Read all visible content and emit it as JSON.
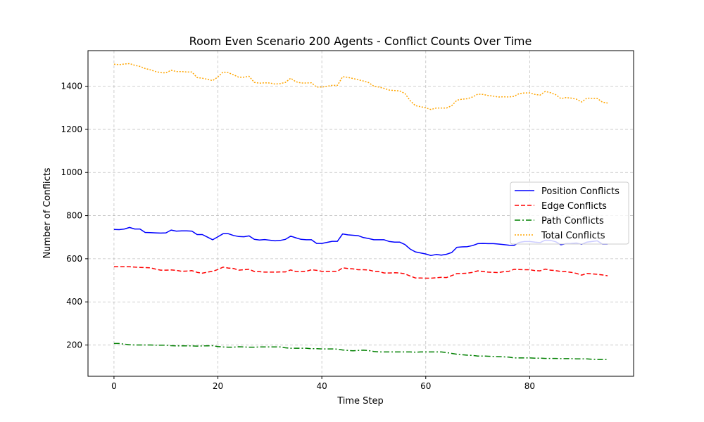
{
  "chart_data": {
    "type": "line",
    "title": "Room Even Scenario 200 Agents - Conflict Counts Over Time",
    "xlabel": "Time Step",
    "ylabel": "Number of Conflicts",
    "xlim": [
      -5,
      100
    ],
    "ylim": [
      55,
      1565
    ],
    "xticks": [
      0,
      20,
      40,
      60,
      80
    ],
    "yticks": [
      200,
      400,
      600,
      800,
      1000,
      1200,
      1400
    ],
    "grid": true,
    "legend_position": "center-right",
    "x": [
      0,
      1,
      2,
      3,
      4,
      5,
      6,
      7,
      8,
      9,
      10,
      11,
      12,
      13,
      14,
      15,
      16,
      17,
      18,
      19,
      20,
      21,
      22,
      23,
      24,
      25,
      26,
      27,
      28,
      29,
      30,
      31,
      32,
      33,
      34,
      35,
      36,
      37,
      38,
      39,
      40,
      41,
      42,
      43,
      44,
      45,
      46,
      47,
      48,
      49,
      50,
      51,
      52,
      53,
      54,
      55,
      56,
      57,
      58,
      59,
      60,
      61,
      62,
      63,
      64,
      65,
      66,
      67,
      68,
      69,
      70,
      71,
      72,
      73,
      74,
      75,
      76,
      77,
      78,
      79,
      80,
      81,
      82,
      83,
      84,
      85,
      86,
      87,
      88,
      89,
      90,
      91,
      92,
      93,
      94,
      95
    ],
    "series": [
      {
        "name": "Position Conflicts",
        "color": "#0000ff",
        "dash": "solid",
        "values": [
          736,
          735,
          738,
          745,
          738,
          738,
          722,
          721,
          720,
          719,
          720,
          733,
          728,
          729,
          729,
          728,
          712,
          712,
          700,
          688,
          702,
          716,
          716,
          708,
          703,
          702,
          706,
          690,
          687,
          689,
          686,
          683,
          685,
          690,
          705,
          697,
          690,
          688,
          688,
          671,
          671,
          676,
          681,
          681,
          715,
          711,
          709,
          707,
          698,
          694,
          688,
          688,
          688,
          680,
          677,
          677,
          666,
          645,
          632,
          627,
          622,
          615,
          620,
          617,
          621,
          629,
          653,
          655,
          656,
          661,
          670,
          671,
          670,
          670,
          668,
          666,
          663,
          662,
          676,
          680,
          680,
          677,
          675,
          686,
          685,
          679,
          665,
          670,
          671,
          673,
          667,
          677,
          680,
          683,
          668,
          668
        ]
      },
      {
        "name": "Edge Conflicts",
        "color": "#ff0000",
        "dash": "dashed",
        "values": [
          563,
          563,
          563,
          563,
          561,
          560,
          559,
          558,
          552,
          547,
          547,
          548,
          546,
          542,
          543,
          545,
          537,
          533,
          538,
          542,
          550,
          561,
          557,
          555,
          547,
          549,
          551,
          541,
          540,
          538,
          538,
          538,
          539,
          539,
          548,
          541,
          540,
          542,
          549,
          546,
          542,
          542,
          542,
          542,
          558,
          555,
          553,
          549,
          549,
          548,
          542,
          540,
          534,
          534,
          535,
          534,
          530,
          520,
          511,
          511,
          510,
          510,
          512,
          514,
          513,
          522,
          531,
          532,
          533,
          537,
          544,
          541,
          538,
          537,
          536,
          540,
          542,
          551,
          550,
          549,
          549,
          545,
          544,
          552,
          547,
          545,
          541,
          540,
          537,
          532,
          524,
          532,
          530,
          528,
          525,
          521
        ]
      },
      {
        "name": "Path Conflicts",
        "color": "#008000",
        "dash": "dashdot",
        "values": [
          207,
          207,
          204,
          201,
          200,
          200,
          200,
          200,
          199,
          199,
          199,
          197,
          196,
          196,
          196,
          196,
          195,
          196,
          196,
          197,
          193,
          191,
          190,
          190,
          192,
          191,
          190,
          190,
          191,
          191,
          191,
          191,
          191,
          187,
          185,
          185,
          185,
          185,
          183,
          183,
          182,
          182,
          182,
          181,
          177,
          175,
          173,
          175,
          176,
          174,
          170,
          168,
          168,
          168,
          168,
          168,
          168,
          168,
          167,
          168,
          168,
          168,
          168,
          168,
          165,
          161,
          157,
          155,
          153,
          152,
          149,
          149,
          148,
          147,
          146,
          145,
          144,
          140,
          140,
          140,
          140,
          139,
          139,
          138,
          138,
          138,
          137,
          137,
          137,
          136,
          136,
          136,
          134,
          133,
          133,
          133
        ]
      },
      {
        "name": "Total Conflicts",
        "color": "#ffa500",
        "dash": "dotted",
        "values": [
          1502,
          1500,
          1503,
          1505,
          1497,
          1492,
          1482,
          1476,
          1468,
          1463,
          1462,
          1474,
          1468,
          1468,
          1466,
          1466,
          1440,
          1437,
          1432,
          1426,
          1443,
          1466,
          1463,
          1453,
          1442,
          1442,
          1446,
          1418,
          1414,
          1416,
          1415,
          1410,
          1412,
          1418,
          1437,
          1421,
          1415,
          1415,
          1416,
          1396,
          1396,
          1400,
          1404,
          1404,
          1444,
          1441,
          1436,
          1430,
          1424,
          1417,
          1400,
          1396,
          1390,
          1382,
          1380,
          1378,
          1366,
          1333,
          1310,
          1305,
          1300,
          1292,
          1299,
          1299,
          1299,
          1310,
          1335,
          1340,
          1342,
          1350,
          1363,
          1362,
          1357,
          1354,
          1350,
          1351,
          1350,
          1353,
          1366,
          1369,
          1369,
          1362,
          1359,
          1376,
          1370,
          1361,
          1343,
          1347,
          1345,
          1340,
          1327,
          1345,
          1344,
          1344,
          1326,
          1322
        ]
      }
    ]
  }
}
